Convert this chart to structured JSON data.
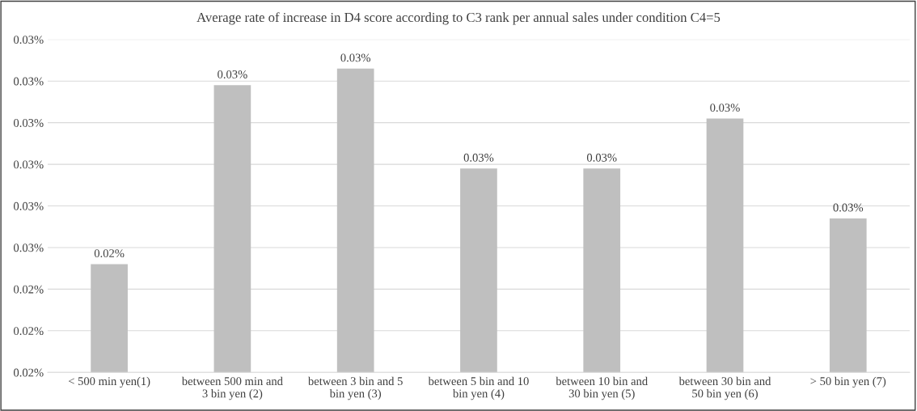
{
  "chart_data": {
    "type": "bar",
    "title": "Average rate of increase in D4 score according to C3 rank per annual sales under condition C4=5",
    "categories": [
      "< 500 min yen(1)",
      "between 500 min and\n3 bin yen (2)",
      "between 3 bin and 5\nbin yen (3)",
      "between 5 bin and 10\nbin yen (4)",
      "between 10 bin and\n30 bin yen (5)",
      "between 30 bin and\n50 bin yen (6)",
      "> 50 bin yen (7)"
    ],
    "values": [
      0.0246,
      0.0289,
      0.0293,
      0.0269,
      0.0269,
      0.0281,
      0.0257
    ],
    "value_labels": [
      "0.02%",
      "0.03%",
      "0.03%",
      "0.03%",
      "0.03%",
      "0.03%",
      "0.03%"
    ],
    "color": "#bfbfbf",
    "ylim": [
      0.022,
      0.03
    ],
    "yticks": [
      {
        "value": 0.022,
        "label": "0.02%"
      },
      {
        "value": 0.023,
        "label": "0.02%"
      },
      {
        "value": 0.024,
        "label": "0.02%"
      },
      {
        "value": 0.025,
        "label": "0.03%"
      },
      {
        "value": 0.026,
        "label": "0.03%"
      },
      {
        "value": 0.027,
        "label": "0.03%"
      },
      {
        "value": 0.028,
        "label": "0.03%"
      },
      {
        "value": 0.029,
        "label": "0.03%"
      },
      {
        "value": 0.03,
        "label": "0.03%"
      }
    ],
    "grid": "y",
    "legend": false
  }
}
